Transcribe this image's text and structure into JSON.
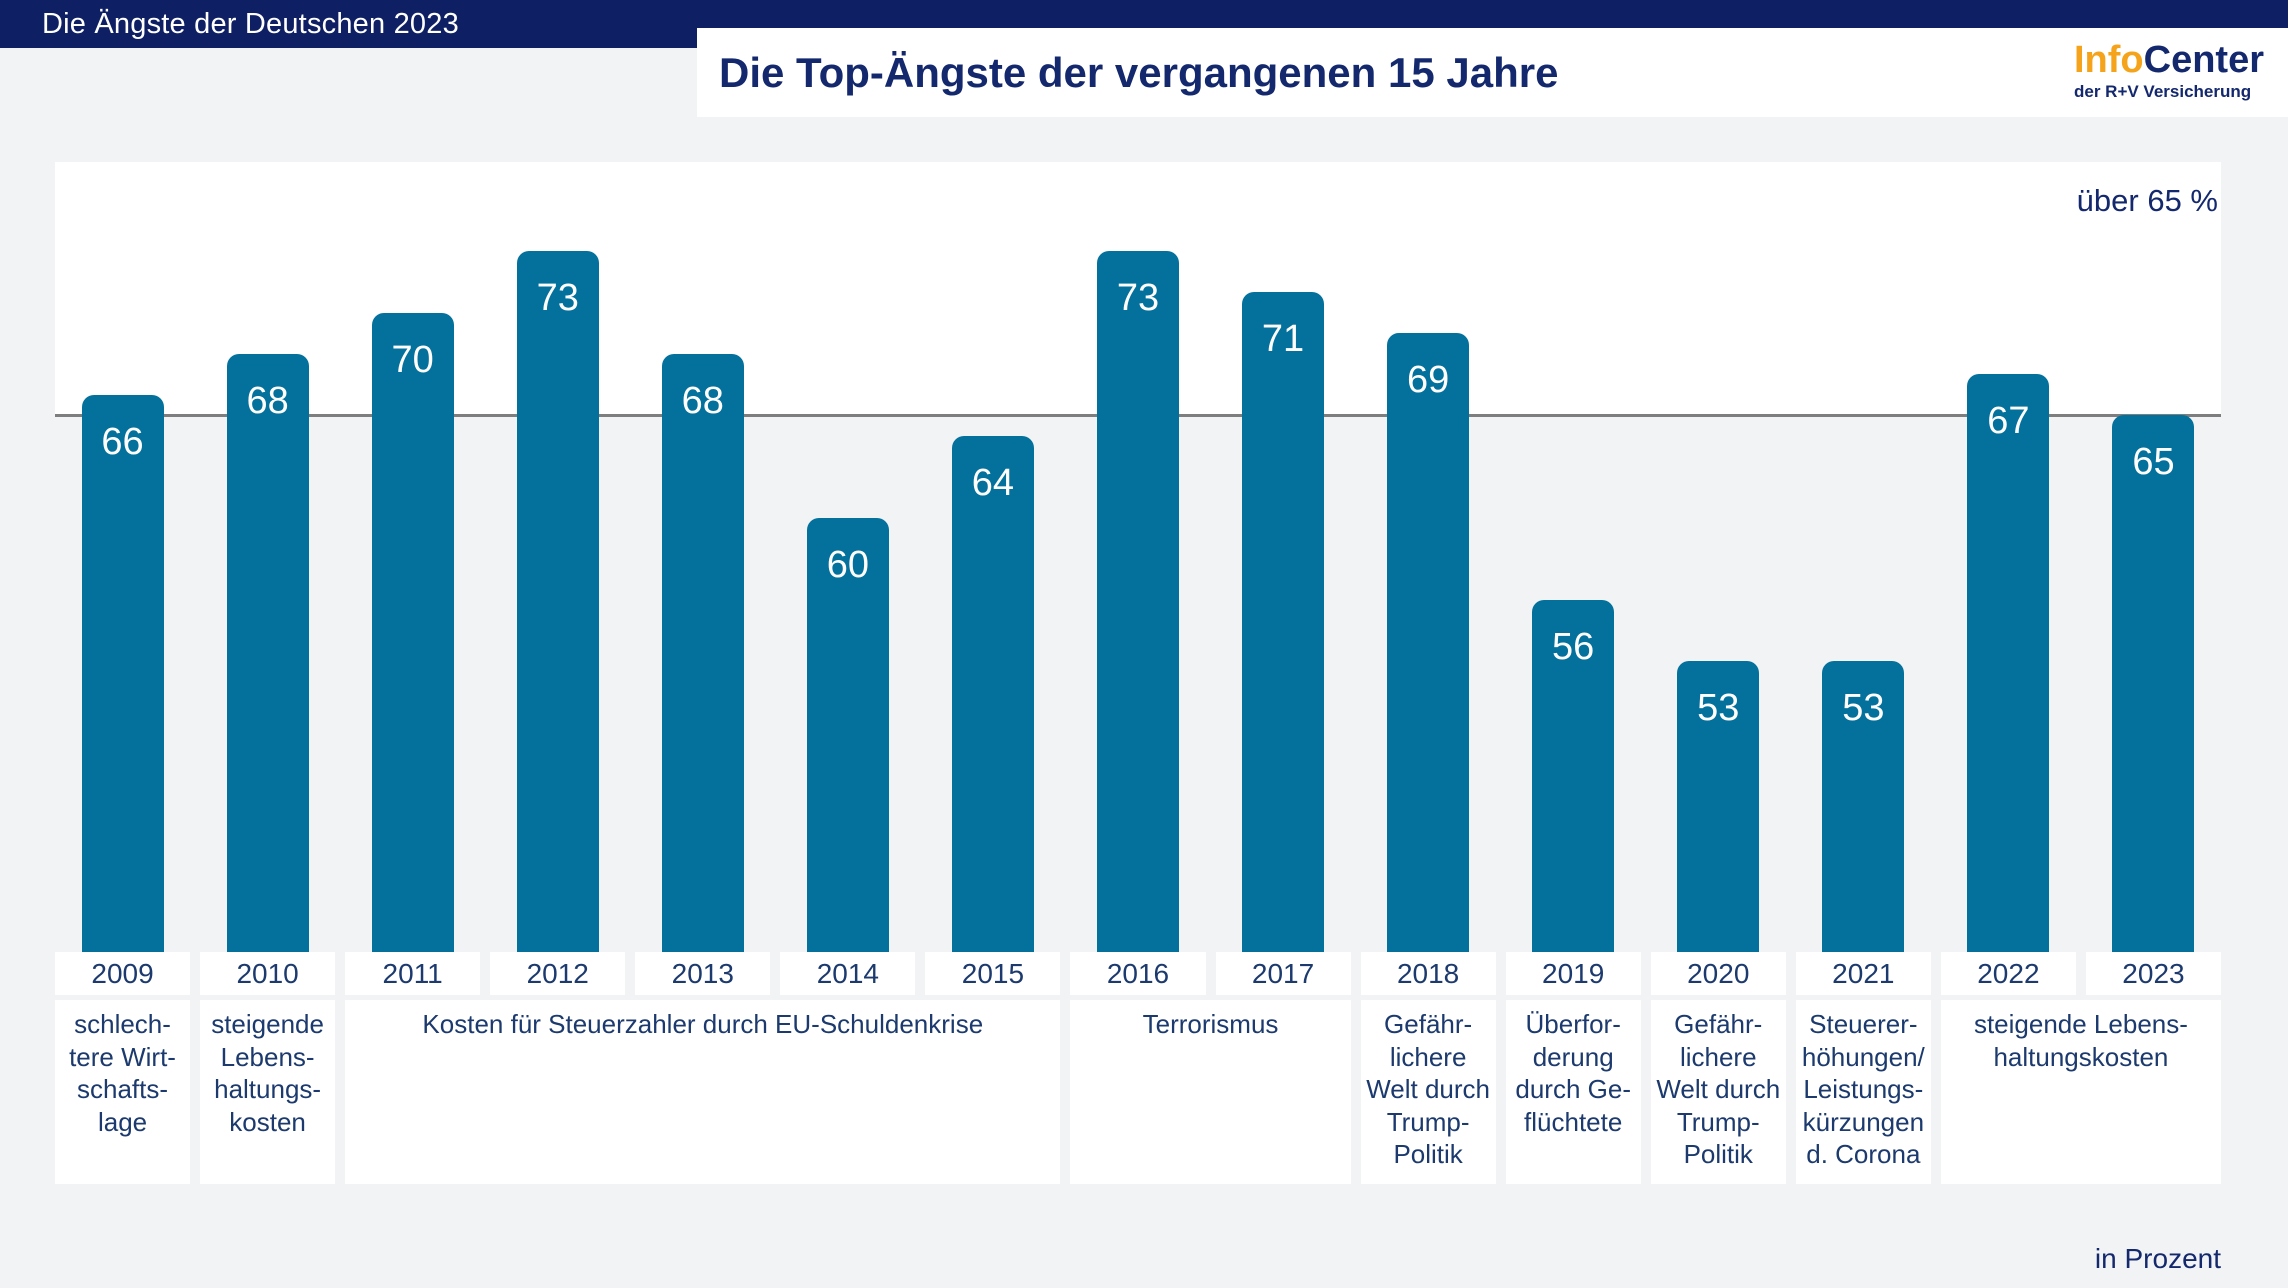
{
  "header": {
    "kicker": "Die Ängste der Deutschen 2023",
    "title": "Die Top-Ängste der vergangenen 15 Jahre"
  },
  "logo": {
    "part1": "Info",
    "part2": "Center",
    "subtitle": "der R+V Versicherung"
  },
  "annotations": {
    "threshold_label": "über 65 %",
    "unit_label": "in Prozent"
  },
  "colors": {
    "navy_header": "#0e2063",
    "navy_text": "#14286e",
    "bar_teal": "#03719c",
    "logo_orange": "#f5a31a",
    "line_gray": "#7e7e7e",
    "background": "#f2f3f4",
    "box_white": "#ffffff"
  },
  "chart_data": {
    "type": "bar",
    "title": "Die Top-Ängste der vergangenen 15 Jahre",
    "unit_label": "in Prozent",
    "threshold": {
      "value": 65,
      "label": "über 65 %"
    },
    "categories": [
      "2009",
      "2010",
      "2011",
      "2012",
      "2013",
      "2014",
      "2015",
      "2016",
      "2017",
      "2018",
      "2019",
      "2020",
      "2021",
      "2022",
      "2023"
    ],
    "values": [
      66,
      68,
      70,
      73,
      68,
      60,
      64,
      73,
      71,
      69,
      56,
      53,
      53,
      67,
      65
    ],
    "fear_labels": [
      {
        "span": 1,
        "text": "schlech-\ntere Wirt-\nschafts-\nlage"
      },
      {
        "span": 1,
        "text": "steigende\nLebens-\nhaltungs-\nkosten"
      },
      {
        "span": 5,
        "text": "Kosten für Steuerzahler durch EU-Schuldenkrise"
      },
      {
        "span": 2,
        "text": "Terrorismus"
      },
      {
        "span": 1,
        "text": "Gefähr-\nlichere\nWelt durch\nTrump-\nPolitik"
      },
      {
        "span": 1,
        "text": "Überfor-\nderung\ndurch Ge-\nflüchtete"
      },
      {
        "span": 1,
        "text": "Gefähr-\nlichere\nWelt durch\nTrump-\nPolitik"
      },
      {
        "span": 1,
        "text": "Steuerer-\nhöhungen/\nLeistungs-\nkürzungen\nd. Corona"
      },
      {
        "span": 2,
        "text": "steigende Lebens-\nhaltungskosten"
      }
    ],
    "layout_hints": {
      "bar_labels_inside_top": true,
      "threshold_line": true,
      "white_area_above_threshold": true
    }
  }
}
